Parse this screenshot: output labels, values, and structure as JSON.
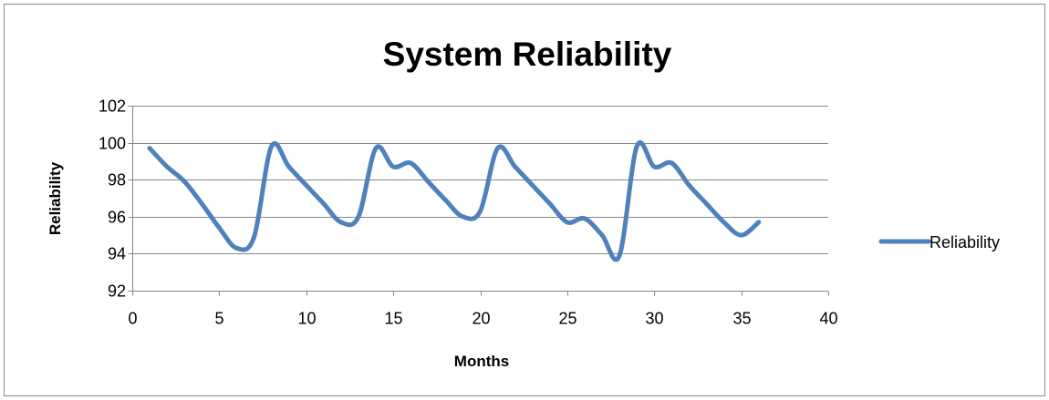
{
  "chart_data": {
    "type": "line",
    "title": "System Reliability",
    "xlabel": "Months",
    "ylabel": "Reliability",
    "xlim": [
      0,
      40
    ],
    "ylim": [
      92,
      102
    ],
    "x_ticks": [
      0,
      5,
      10,
      15,
      20,
      25,
      30,
      35,
      40
    ],
    "y_ticks": [
      92,
      94,
      96,
      98,
      100,
      102
    ],
    "grid": "horizontal",
    "legend_position": "right",
    "series": [
      {
        "name": "Reliability",
        "color": "#4F81BD",
        "x": [
          1,
          2,
          3,
          4,
          5,
          6,
          7,
          8,
          9,
          10,
          11,
          12,
          13,
          14,
          15,
          16,
          17,
          18,
          19,
          20,
          21,
          22,
          23,
          24,
          25,
          26,
          27,
          28,
          29,
          30,
          31,
          32,
          33,
          34,
          35,
          36
        ],
        "values": [
          99.7,
          98.7,
          97.9,
          96.7,
          95.4,
          94.3,
          94.9,
          99.8,
          98.7,
          97.7,
          96.7,
          95.7,
          96.0,
          99.7,
          98.7,
          98.9,
          97.9,
          96.9,
          96.0,
          96.3,
          99.7,
          98.7,
          97.7,
          96.7,
          95.7,
          95.9,
          95.0,
          93.9,
          99.8,
          98.7,
          98.9,
          97.7,
          96.7,
          95.7,
          95.0,
          95.7
        ]
      }
    ]
  }
}
